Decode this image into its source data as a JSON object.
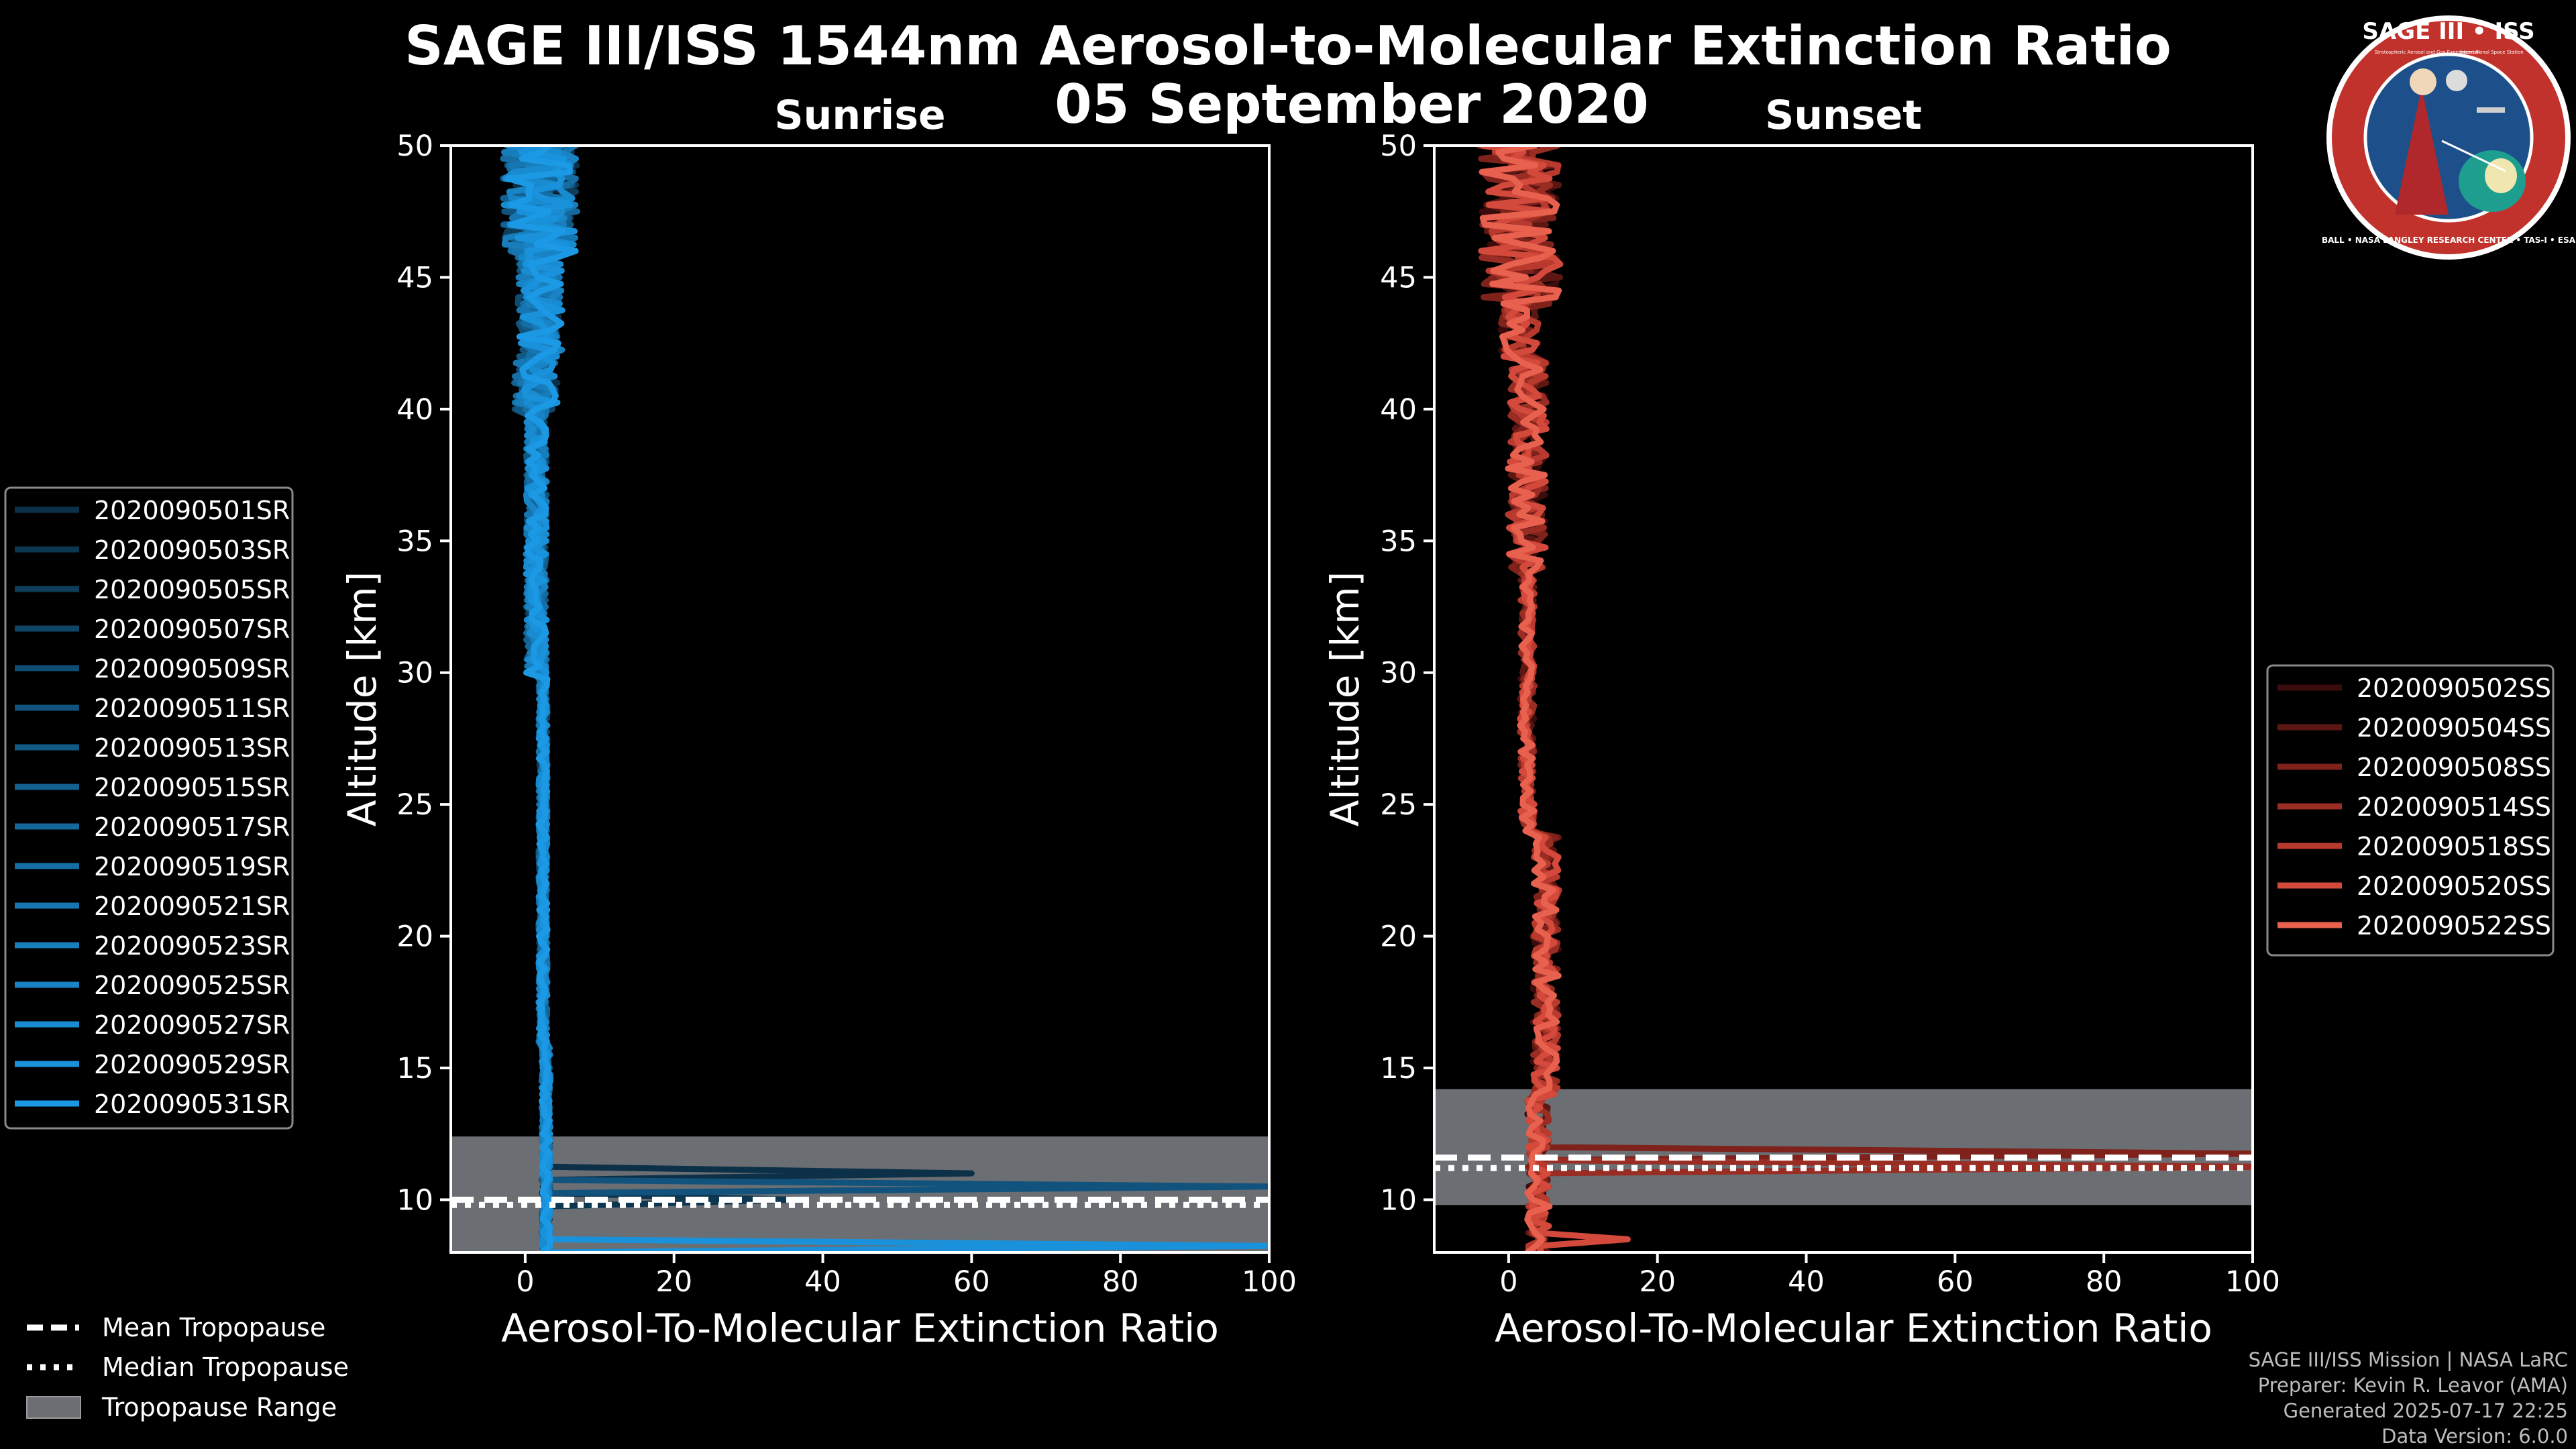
{
  "title_line1": "SAGE III/ISS 1544nm Aerosol-to-Molecular Extinction Ratio",
  "title_line2": "05 September 2020",
  "logo": {
    "top_text": "SAGE III • ISS",
    "sub_left": "Stratospheric Aerosol and Gas Experiment III",
    "sub_right": "International Space Station",
    "ring_text": "BALL • NASA LANGLEY RESEARCH CENTER • TAS-I • ESA",
    "colors": {
      "ring": "#c2322c",
      "field": "#1d4f8a",
      "trim": "#ffffff"
    }
  },
  "credits": [
    "SAGE III/ISS Mission | NASA LaRC",
    "Preparer: Kevin R. Leavor (AMA)",
    "Generated 2025-07-17 22:25",
    "Data Version: 6.0.0"
  ],
  "tropo_legend": {
    "mean": "Mean Tropopause",
    "median": "Median Tropopause",
    "range": "Tropopause Range"
  },
  "chart_data": [
    {
      "type": "line",
      "title": "Sunrise",
      "xlabel": "Aerosol-To-Molecular Extinction Ratio",
      "ylabel": "Altitude [km]",
      "xlim": [
        -10,
        100
      ],
      "ylim": [
        8,
        50
      ],
      "xticks": [
        0,
        20,
        40,
        60,
        80,
        100
      ],
      "yticks": [
        10,
        15,
        20,
        25,
        30,
        35,
        40,
        45,
        50
      ],
      "tropopause": {
        "mean": 10.0,
        "median": 9.8,
        "range": [
          8.0,
          12.4
        ]
      },
      "series": [
        {
          "name": "2020090501SR",
          "color": "#0c3048",
          "spike_alt": 11.0,
          "spike_x": 60
        },
        {
          "name": "2020090503SR",
          "color": "#0d3751",
          "spike_alt": 10.0,
          "spike_x": 36
        },
        {
          "name": "2020090505SR",
          "color": "#0e3e5c",
          "spike_alt": null,
          "spike_x": null
        },
        {
          "name": "2020090507SR",
          "color": "#0f4566",
          "spike_alt": null,
          "spike_x": null
        },
        {
          "name": "2020090509SR",
          "color": "#104c71",
          "spike_alt": null,
          "spike_x": null
        },
        {
          "name": "2020090511SR",
          "color": "#11537c",
          "spike_alt": 10.5,
          "spike_x": 100
        },
        {
          "name": "2020090513SR",
          "color": "#125a86",
          "spike_alt": null,
          "spike_x": null
        },
        {
          "name": "2020090515SR",
          "color": "#136191",
          "spike_alt": null,
          "spike_x": null
        },
        {
          "name": "2020090517SR",
          "color": "#14689c",
          "spike_alt": null,
          "spike_x": null
        },
        {
          "name": "2020090519SR",
          "color": "#156fa6",
          "spike_alt": null,
          "spike_x": null
        },
        {
          "name": "2020090521SR",
          "color": "#1676b1",
          "spike_alt": null,
          "spike_x": null
        },
        {
          "name": "2020090523SR",
          "color": "#177dbb",
          "spike_alt": null,
          "spike_x": null
        },
        {
          "name": "2020090525SR",
          "color": "#1884c6",
          "spike_alt": null,
          "spike_x": null
        },
        {
          "name": "2020090527SR",
          "color": "#198bd0",
          "spike_alt": null,
          "spike_x": null
        },
        {
          "name": "2020090529SR",
          "color": "#1a92db",
          "spike_alt": 8.3,
          "spike_x": 100
        },
        {
          "name": "2020090531SR",
          "color": "#1b99e5",
          "spike_alt": null,
          "spike_x": null
        }
      ]
    },
    {
      "type": "line",
      "title": "Sunset",
      "xlabel": "Aerosol-To-Molecular Extinction Ratio",
      "ylabel": "Altitude [km]",
      "xlim": [
        -10,
        100
      ],
      "ylim": [
        8,
        50
      ],
      "xticks": [
        0,
        20,
        40,
        60,
        80,
        100
      ],
      "yticks": [
        10,
        15,
        20,
        25,
        30,
        35,
        40,
        45,
        50
      ],
      "tropopause": {
        "mean": 11.6,
        "median": 11.2,
        "range": [
          9.8,
          14.2
        ]
      },
      "series": [
        {
          "name": "2020090502SS",
          "color": "#3a0c0b",
          "spike_alt": null,
          "spike_x": null
        },
        {
          "name": "2020090504SS",
          "color": "#5c1713",
          "spike_alt": null,
          "spike_x": null
        },
        {
          "name": "2020090508SS",
          "color": "#7e221b",
          "spike_alt": 11.8,
          "spike_x": 100
        },
        {
          "name": "2020090514SS",
          "color": "#9a2d23",
          "spike_alt": 11.2,
          "spike_x": 100
        },
        {
          "name": "2020090518SS",
          "color": "#b8392d",
          "spike_alt": null,
          "spike_x": null
        },
        {
          "name": "2020090520SS",
          "color": "#d34a3c",
          "spike_alt": 8.6,
          "spike_x": 16
        },
        {
          "name": "2020090522SS",
          "color": "#e8604e",
          "spike_alt": null,
          "spike_x": null
        }
      ]
    }
  ]
}
